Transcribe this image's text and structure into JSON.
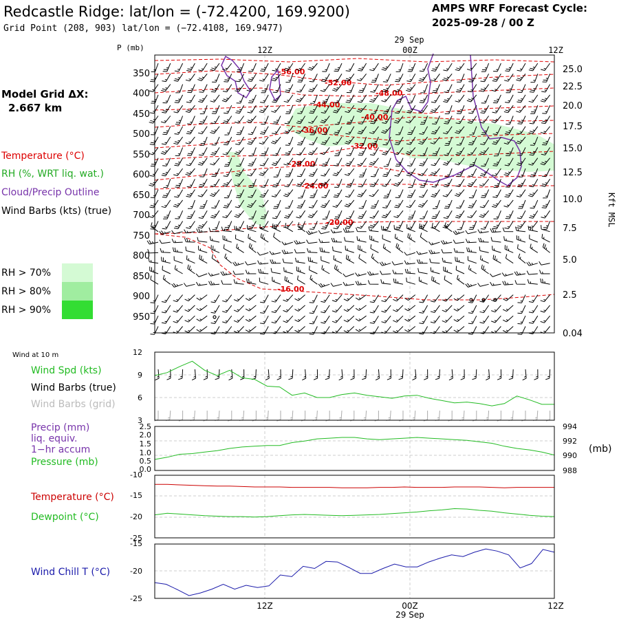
{
  "header": {
    "title": "Redcastle Ridge:  lat/lon = (-72.4200, 169.9200)",
    "subtitle": "Grid Point (208, 903) lat/lon = (−72.4108, 169.9477)",
    "cycle_line1": "AMPS WRF Forecast Cycle:",
    "cycle_line2": "2025-09-28 / 00  Z"
  },
  "side": {
    "grid_label": "Model Grid ΔX:",
    "grid_value": "2.667 km",
    "temperature_label": "Temperature (°C)",
    "rh_label": "RH (%, WRT liq. wat.)",
    "cloud_label": "Cloud/Precip Outline",
    "barbs_label": "Wind Barbs (kts) (true)",
    "rh_legend": [
      {
        "label": "RH > 70%",
        "color": "#d4fad4"
      },
      {
        "label": "RH > 80%",
        "color": "#a0eda0"
      },
      {
        "label": "RH > 90%",
        "color": "#33dd33"
      }
    ]
  },
  "colors": {
    "temperature": "#dd0000",
    "rh": "#22aa22",
    "cloud": "#7733aa",
    "wind_chill": "#1a1aaa",
    "grid_barbs": "#bbbbbb"
  },
  "chart_data": [
    {
      "type": "line",
      "panel": "cross-section",
      "xlabel": "",
      "ylabel": "P (mb)",
      "right_axis_label": "Kft MSL",
      "time_top_labels": [
        "12Z",
        "00Z",
        "12Z"
      ],
      "date_label": "29 Sep",
      "p_ticks": [
        350,
        400,
        450,
        500,
        550,
        600,
        650,
        700,
        750,
        800,
        850,
        900,
        950
      ],
      "height_ticks": [
        "25.0",
        "22.5",
        "20.0",
        "17.5",
        "15.0",
        "12.5",
        "10.0",
        "7.5",
        "5.0",
        "2.5",
        "0.04"
      ],
      "temperature_labels": [
        "-56.00",
        "-52.00",
        "-48.00",
        "-44.00",
        "-40.00",
        "-36.00",
        "-32.00",
        "-28.00",
        "-24.00",
        "-20.00",
        "-16.00"
      ],
      "temperature_contours": [
        -56,
        -52,
        -48,
        -44,
        -40,
        -36,
        -32,
        -28,
        -24,
        -20,
        -16
      ]
    },
    {
      "type": "line",
      "panel": "wind-10m",
      "title": "Wind at 10 m",
      "series": [
        {
          "name": "Wind Spd (kts)",
          "color": "#22bb22",
          "values": [
            8.9,
            9.3,
            10.1,
            10.8,
            9.6,
            8.9,
            9.6,
            8.6,
            8.4,
            7.5,
            7.4,
            6.3,
            6.6,
            6.0,
            6.0,
            6.4,
            6.6,
            6.3,
            6.1,
            5.9,
            6.2,
            6.3,
            5.9,
            5.6,
            5.3,
            5.4,
            5.2,
            4.9,
            5.2,
            6.2,
            5.7,
            5.1,
            5.1
          ]
        }
      ],
      "legend": [
        "Wind Spd (kts)",
        "Wind Barbs (true)",
        "Wind Barbs (grid)"
      ],
      "ylim": [
        3,
        12
      ],
      "y_ticks": [
        "12",
        "9",
        "6",
        "3"
      ]
    },
    {
      "type": "line",
      "panel": "precip-pressure",
      "series": [
        {
          "name": "Pressure (mb)",
          "color": "#22bb22",
          "values": [
            989.5,
            989.8,
            990.2,
            990.3,
            990.5,
            990.7,
            991.0,
            991.2,
            991.3,
            991.4,
            991.4,
            991.8,
            992.0,
            992.3,
            992.4,
            992.5,
            992.5,
            992.3,
            992.2,
            992.3,
            992.4,
            992.5,
            992.4,
            992.3,
            992.2,
            992.1,
            991.9,
            991.7,
            991.3,
            991.0,
            990.8,
            990.5,
            990.1
          ]
        }
      ],
      "legend": [
        "Precip (mm)",
        "liq. equiv.",
        "1−hr accum",
        "Pressure (mb)"
      ],
      "left_ticks": [
        "2.5",
        "2.0",
        "1.5",
        "1.0",
        "0.5",
        "0.0"
      ],
      "right_ticks": [
        "994",
        "992",
        "990",
        "988"
      ],
      "right_unit": "(mb)",
      "ylim": [
        988,
        994
      ]
    },
    {
      "type": "line",
      "panel": "temperature-dewpoint",
      "series": [
        {
          "name": "Temperature (°C)",
          "color": "#cc0000",
          "values": [
            -12.2,
            -12.2,
            -12.3,
            -12.4,
            -12.5,
            -12.6,
            -12.6,
            -12.7,
            -12.8,
            -12.8,
            -12.8,
            -12.9,
            -12.9,
            -12.9,
            -12.9,
            -13.0,
            -13.0,
            -13.0,
            -12.9,
            -12.9,
            -12.8,
            -12.9,
            -12.9,
            -12.9,
            -12.8,
            -12.8,
            -12.8,
            -12.9,
            -13.0,
            -12.9,
            -12.9,
            -12.9,
            -12.9
          ]
        },
        {
          "name": "Dewpoint (°C)",
          "color": "#22bb22",
          "values": [
            -19.5,
            -19.1,
            -19.3,
            -19.5,
            -19.7,
            -19.8,
            -19.9,
            -19.9,
            -20.0,
            -19.9,
            -19.7,
            -19.5,
            -19.4,
            -19.5,
            -19.6,
            -19.7,
            -19.6,
            -19.5,
            -19.4,
            -19.2,
            -19.0,
            -18.8,
            -18.5,
            -18.3,
            -18.0,
            -18.1,
            -18.4,
            -18.6,
            -19.0,
            -19.3,
            -19.6,
            -19.8,
            -19.9
          ]
        }
      ],
      "y_ticks": [
        "-10",
        "-15",
        "-20",
        "-25"
      ],
      "ylim": [
        -25,
        -10
      ]
    },
    {
      "type": "line",
      "panel": "wind-chill",
      "series": [
        {
          "name": "Wind Chill T (°C)",
          "color": "#1a1aaa",
          "values": [
            -22.1,
            -22.4,
            -23.4,
            -24.5,
            -24.0,
            -23.3,
            -22.4,
            -23.3,
            -22.6,
            -23.0,
            -22.7,
            -20.7,
            -21.0,
            -19.1,
            -19.5,
            -18.2,
            -18.3,
            -19.3,
            -20.4,
            -20.4,
            -19.5,
            -18.7,
            -19.2,
            -19.2,
            -18.3,
            -17.6,
            -17.0,
            -17.3,
            -16.5,
            -15.9,
            -16.3,
            -17.0,
            -19.4,
            -18.6,
            -16.0,
            -16.5
          ]
        }
      ],
      "y_ticks": [
        "-15",
        "-20",
        "-25"
      ],
      "ylim": [
        -25,
        -15
      ],
      "x_ticks": [
        "12Z",
        "00Z",
        "12Z"
      ],
      "date_label": "29 Sep"
    }
  ]
}
